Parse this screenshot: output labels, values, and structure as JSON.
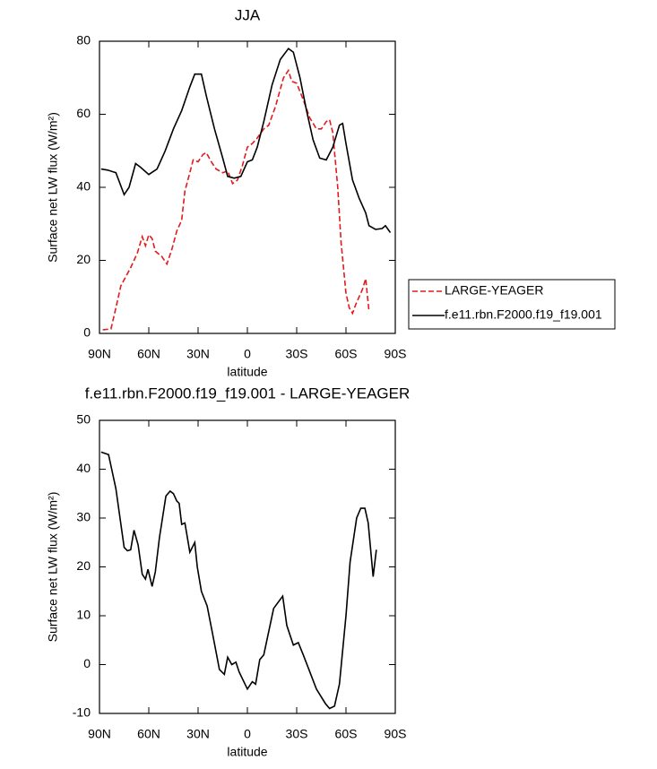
{
  "chart_data": [
    {
      "type": "line",
      "title": "JJA",
      "xlabel": "latitude",
      "ylabel": "Surface net LW flux (W/m²)",
      "xlim": [
        90,
        -90
      ],
      "xticks": [
        {
          "value": 90,
          "label": "90N"
        },
        {
          "value": 60,
          "label": "60N"
        },
        {
          "value": 30,
          "label": "30N"
        },
        0,
        {
          "value": -30,
          "label": "30S"
        },
        {
          "value": -60,
          "label": "60S"
        },
        {
          "value": -90,
          "label": "90S"
        }
      ],
      "ylim": [
        0,
        80
      ],
      "yticks": [
        0,
        20,
        40,
        60,
        80
      ],
      "legend": "right",
      "series": [
        {
          "name": "LARGE-YEAGER",
          "color": "#e41a1c",
          "dash": true,
          "x": [
            88,
            83,
            80,
            77,
            74,
            71,
            67,
            64,
            62,
            60,
            58,
            56,
            52,
            49,
            46,
            43,
            40,
            38,
            35,
            33,
            30,
            27,
            25,
            22,
            19,
            15,
            12,
            9,
            6,
            3,
            0,
            -3,
            -6,
            -10,
            -13,
            -17,
            -22,
            -25,
            -27,
            -30,
            -34,
            -38,
            -42,
            -45,
            -48,
            -50,
            -52,
            -55,
            -57,
            -60,
            -62,
            -64,
            -66,
            -70,
            -72,
            -74
          ],
          "values": [
            1,
            1.2,
            7,
            13,
            15.5,
            18,
            22,
            26.5,
            24,
            27,
            26,
            22.5,
            21,
            19,
            23,
            28,
            31,
            39,
            44,
            47.5,
            47,
            49,
            49.5,
            47,
            45,
            44,
            44.5,
            41,
            42,
            46,
            51,
            52,
            53.5,
            56,
            57,
            62,
            70,
            72,
            69,
            68.5,
            64,
            59,
            56,
            56,
            58,
            58.5,
            55,
            40,
            25,
            11,
            7,
            5.5,
            8,
            12,
            15,
            6
          ]
        },
        {
          "name": "f.e11.rbn.F2000.f19_f19.001",
          "color": "#000000",
          "dash": false,
          "x": [
            89,
            85,
            80,
            75,
            72,
            68,
            65,
            60,
            55,
            50,
            45,
            40,
            35,
            32,
            28,
            25,
            20,
            15,
            12,
            8,
            4,
            0,
            -3,
            -6,
            -10,
            -15,
            -20,
            -25,
            -28,
            -32,
            -36,
            -40,
            -44,
            -48,
            -52,
            -56,
            -58,
            -60,
            -64,
            -68,
            -72,
            -74,
            -78,
            -82,
            -84,
            -87
          ],
          "values": [
            45,
            44.7,
            44,
            38,
            40,
            46.5,
            45.5,
            43.5,
            45,
            50,
            56,
            61,
            67.5,
            71,
            71,
            65,
            56,
            48,
            43,
            42.5,
            43,
            47,
            47.5,
            51,
            58,
            68,
            75,
            78,
            77,
            70,
            61,
            53,
            48,
            47.5,
            51,
            57,
            57.5,
            52,
            42,
            37,
            33,
            29.5,
            28.5,
            28.7,
            29.5,
            27.6
          ]
        }
      ]
    },
    {
      "type": "line",
      "title": "f.e11.rbn.F2000.f19_f19.001 - LARGE-YEAGER",
      "xlabel": "latitude",
      "ylabel": "Surface net LW flux (W/m²)",
      "xlim": [
        90,
        -90
      ],
      "xticks": [
        {
          "value": 90,
          "label": "90N"
        },
        {
          "value": 60,
          "label": "60N"
        },
        {
          "value": 30,
          "label": "30N"
        },
        0,
        {
          "value": -30,
          "label": "30S"
        },
        {
          "value": -60,
          "label": "60S"
        },
        {
          "value": -90,
          "label": "90S"
        }
      ],
      "ylim": [
        -10,
        50
      ],
      "yticks": [
        -10,
        0,
        10,
        20,
        30,
        40,
        50
      ],
      "series": [
        {
          "color": "#000000",
          "dash": false,
          "x": [
            89,
            84.5,
            80,
            75,
            73,
            71,
            69,
            66.5,
            64,
            62,
            60.5,
            58,
            56,
            53.5,
            49.6,
            47,
            45,
            43,
            41.5,
            40,
            38,
            35,
            32,
            30.5,
            28,
            24.5,
            21,
            17,
            14,
            12,
            9.5,
            7,
            5,
            0,
            -3,
            -5,
            -7.5,
            -10,
            -16,
            -21.5,
            -24,
            -28,
            -31,
            -34,
            -38,
            -42,
            -47.5,
            -50,
            -53,
            -56,
            -60,
            -62.5,
            -66.5,
            -69,
            -71.5,
            -73.5,
            -76.5,
            -78.5
          ],
          "values": [
            43.5,
            43,
            36,
            24,
            23.3,
            23.5,
            27.5,
            24.5,
            18.5,
            17.5,
            19.5,
            16,
            19,
            26,
            34.5,
            35.5,
            35,
            33.5,
            33,
            28.7,
            29,
            23,
            25,
            20,
            15,
            12,
            6,
            -1,
            -2,
            1.5,
            0,
            0.5,
            -1.5,
            -5,
            -3.5,
            -4,
            1,
            2,
            11.5,
            14,
            8,
            4,
            4.5,
            2,
            -1.5,
            -5,
            -8,
            -9,
            -8.5,
            -4,
            10,
            21,
            30,
            32,
            32,
            29,
            18,
            23.5
          ]
        }
      ]
    }
  ]
}
